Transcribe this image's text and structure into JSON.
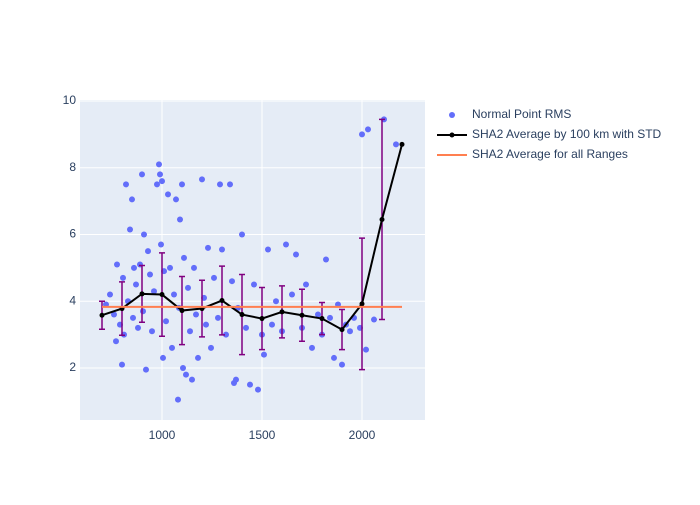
{
  "chart_data": {
    "type": "scatter",
    "xlim": [
      590,
      2315
    ],
    "ylim": [
      0.44,
      10.03
    ],
    "xticks": [
      1000,
      1500,
      2000
    ],
    "yticks": [
      2,
      4,
      6,
      8,
      10
    ],
    "grid": true,
    "legend_position": "right",
    "series": [
      {
        "name": "Normal Point RMS",
        "type": "scatter",
        "color": "#636efa",
        "x": [
          720,
          740,
          760,
          770,
          775,
          790,
          800,
          805,
          810,
          820,
          830,
          840,
          850,
          855,
          860,
          870,
          880,
          890,
          900,
          905,
          910,
          920,
          930,
          940,
          950,
          960,
          975,
          985,
          990,
          995,
          1000,
          1005,
          1010,
          1020,
          1030,
          1040,
          1050,
          1060,
          1070,
          1080,
          1085,
          1090,
          1100,
          1105,
          1110,
          1120,
          1130,
          1140,
          1150,
          1160,
          1170,
          1180,
          1200,
          1210,
          1220,
          1230,
          1245,
          1260,
          1280,
          1290,
          1300,
          1320,
          1340,
          1350,
          1360,
          1370,
          1380,
          1400,
          1420,
          1440,
          1460,
          1480,
          1500,
          1510,
          1530,
          1550,
          1570,
          1600,
          1620,
          1650,
          1670,
          1700,
          1720,
          1750,
          1780,
          1800,
          1820,
          1840,
          1860,
          1880,
          1900,
          1920,
          1940,
          1960,
          1990,
          2000,
          2020,
          2030,
          2060,
          2110,
          2170
        ],
        "values": [
          3.9,
          4.2,
          3.6,
          2.8,
          5.1,
          3.3,
          2.1,
          4.7,
          3.0,
          7.5,
          4.0,
          6.15,
          7.05,
          3.5,
          5.0,
          4.5,
          3.2,
          5.1,
          7.8,
          3.7,
          6.0,
          1.95,
          5.5,
          4.8,
          3.1,
          4.3,
          7.5,
          8.1,
          7.8,
          5.7,
          7.6,
          2.3,
          4.9,
          3.4,
          7.2,
          5.0,
          2.6,
          4.2,
          7.05,
          1.05,
          3.8,
          6.45,
          7.5,
          2.0,
          5.3,
          1.8,
          4.4,
          3.1,
          1.65,
          5.0,
          3.6,
          2.3,
          7.65,
          4.1,
          3.3,
          5.6,
          2.6,
          4.7,
          3.5,
          7.5,
          5.55,
          3.0,
          7.5,
          4.6,
          1.55,
          1.65,
          3.8,
          6.0,
          3.2,
          1.5,
          4.5,
          1.35,
          3.0,
          2.4,
          5.55,
          3.3,
          4.0,
          3.1,
          5.7,
          4.2,
          5.4,
          3.2,
          4.5,
          2.6,
          3.6,
          3.0,
          5.25,
          3.5,
          2.3,
          3.9,
          2.1,
          3.3,
          3.1,
          3.5,
          3.2,
          9.0,
          2.55,
          9.15,
          3.45,
          9.45,
          8.7
        ]
      },
      {
        "name": "SHA2 Average by 100 km with STD",
        "type": "line",
        "color": "#000000",
        "error_color": "#800080",
        "x": [
          700,
          800,
          900,
          1000,
          1100,
          1200,
          1300,
          1400,
          1500,
          1600,
          1700,
          1800,
          1900,
          2000,
          2100,
          2200
        ],
        "values": [
          3.58,
          3.78,
          4.22,
          4.2,
          3.72,
          3.78,
          4.02,
          3.6,
          3.48,
          3.68,
          3.58,
          3.48,
          3.15,
          3.92,
          6.45,
          8.7
        ],
        "error": [
          0.42,
          0.8,
          0.85,
          1.25,
          1.02,
          0.85,
          1.03,
          1.2,
          0.93,
          0.78,
          0.78,
          0.48,
          0.6,
          1.97,
          3.0,
          null
        ]
      },
      {
        "name": "SHA2 Average for all Ranges",
        "type": "line",
        "color": "#ff7f50",
        "x": [
          700,
          2200
        ],
        "values": [
          3.83,
          3.83
        ]
      }
    ]
  }
}
